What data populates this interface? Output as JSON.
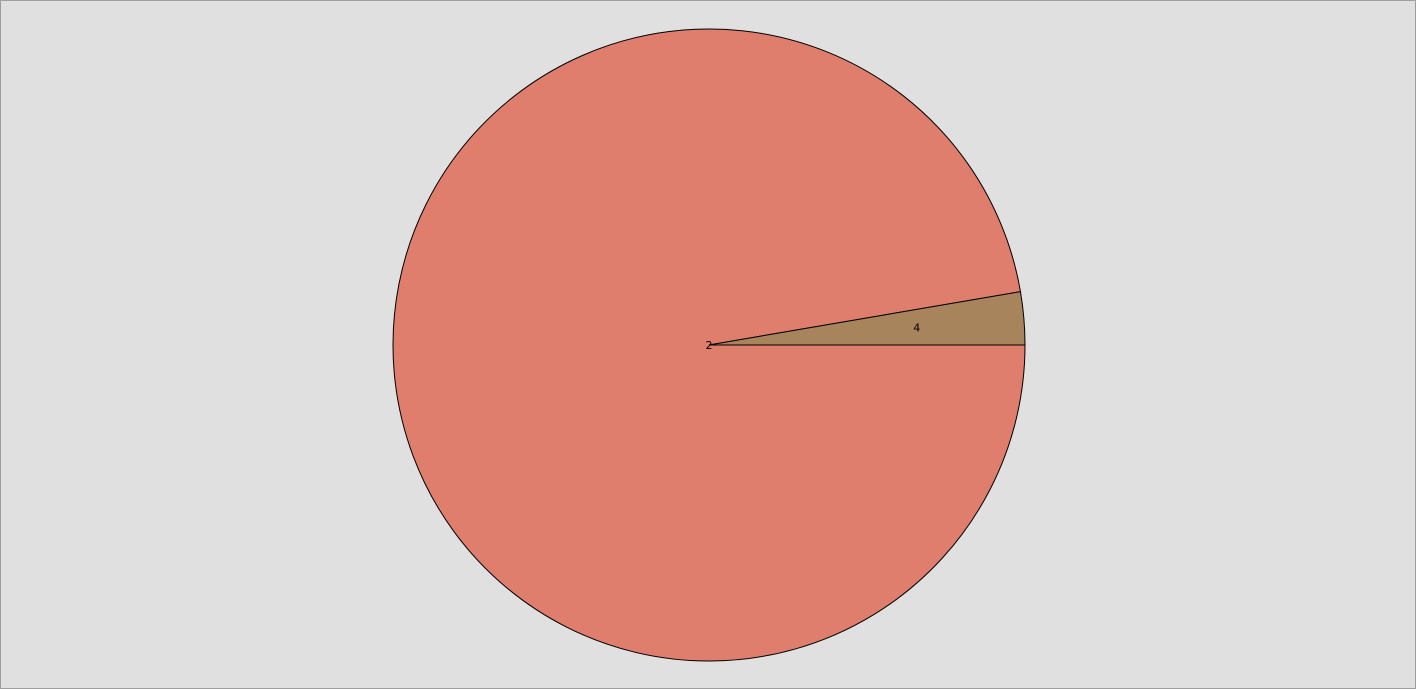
{
  "chart_data": {
    "type": "pie",
    "start_angle_deg": 0,
    "direction": "clockwise",
    "slices": [
      {
        "label": "2",
        "value": 97.3,
        "color": "#e07e6e"
      },
      {
        "label": "4",
        "value": 2.7,
        "color": "#a8845c"
      }
    ]
  }
}
